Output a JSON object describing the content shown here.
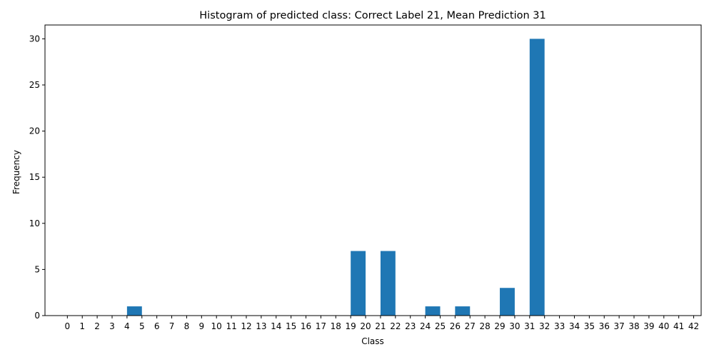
{
  "chart_data": {
    "type": "bar",
    "title": "Histogram of predicted class: Correct Label 21, Mean Prediction 31",
    "xlabel": "Class",
    "ylabel": "Frequency",
    "xlim": [
      -1.5,
      42.5
    ],
    "ylim": [
      0,
      31.5
    ],
    "x_ticks": [
      0,
      1,
      2,
      3,
      4,
      5,
      6,
      7,
      8,
      9,
      10,
      11,
      12,
      13,
      14,
      15,
      16,
      17,
      18,
      19,
      20,
      21,
      22,
      23,
      24,
      25,
      26,
      27,
      28,
      29,
      30,
      31,
      32,
      33,
      34,
      35,
      36,
      37,
      38,
      39,
      40,
      41,
      42
    ],
    "y_ticks": [
      0,
      5,
      10,
      15,
      20,
      25,
      30
    ],
    "bars": [
      {
        "x": 4,
        "x_end": 5,
        "value": 1
      },
      {
        "x": 19,
        "x_end": 20,
        "value": 7
      },
      {
        "x": 21,
        "x_end": 22,
        "value": 7
      },
      {
        "x": 24,
        "x_end": 25,
        "value": 1
      },
      {
        "x": 26,
        "x_end": 27,
        "value": 1
      },
      {
        "x": 29,
        "x_end": 30,
        "value": 3
      },
      {
        "x": 31,
        "x_end": 32,
        "value": 30
      }
    ],
    "bar_color": "#1f77b4",
    "grid": false,
    "legend": "none"
  }
}
